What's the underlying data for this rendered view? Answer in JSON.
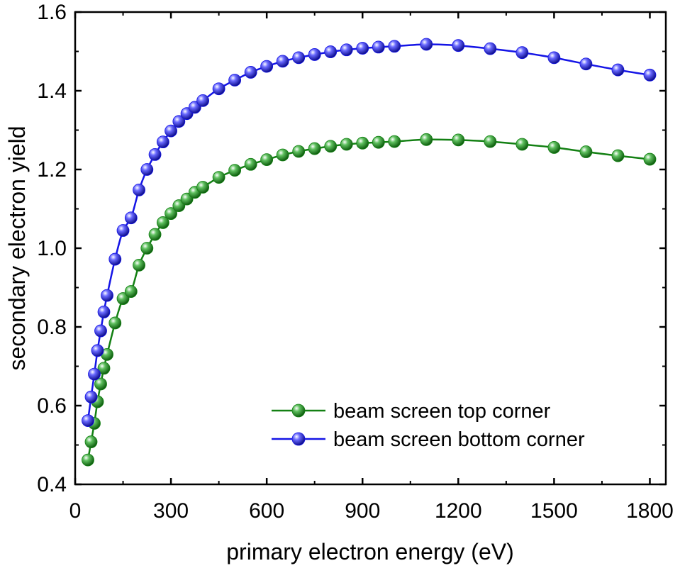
{
  "chart_data": {
    "type": "line",
    "xlabel": "primary electron energy (eV)",
    "ylabel": "secondary electron yield",
    "xlim": [
      0,
      1850
    ],
    "ylim": [
      0.4,
      1.6
    ],
    "xticks": [
      0,
      300,
      600,
      900,
      1200,
      1500,
      1800
    ],
    "yticks": [
      0.4,
      0.6,
      0.8,
      1.0,
      1.2,
      1.4,
      1.6
    ],
    "xtick_labels": [
      "0",
      "300",
      "600",
      "900",
      "1200",
      "1500",
      "1800"
    ],
    "ytick_labels": [
      "0.4",
      "0.6",
      "0.8",
      "1.0",
      "1.2",
      "1.4",
      "1.6"
    ],
    "grid": false,
    "legend_position": "bottom-right",
    "series": [
      {
        "name": "beam screen top corner",
        "color": "#138013",
        "marker": "sphere",
        "x": [
          40,
          50,
          60,
          70,
          80,
          90,
          100,
          125,
          150,
          175,
          200,
          225,
          250,
          275,
          300,
          325,
          350,
          375,
          400,
          450,
          500,
          550,
          600,
          650,
          700,
          750,
          800,
          850,
          900,
          950,
          1000,
          1100,
          1200,
          1300,
          1400,
          1500,
          1600,
          1700,
          1800
        ],
        "y": [
          0.462,
          0.508,
          0.555,
          0.61,
          0.655,
          0.695,
          0.73,
          0.81,
          0.872,
          0.89,
          0.957,
          1.0,
          1.035,
          1.065,
          1.088,
          1.108,
          1.125,
          1.142,
          1.155,
          1.18,
          1.198,
          1.213,
          1.225,
          1.237,
          1.246,
          1.253,
          1.259,
          1.264,
          1.267,
          1.269,
          1.271,
          1.276,
          1.275,
          1.271,
          1.264,
          1.256,
          1.245,
          1.235,
          1.226
        ]
      },
      {
        "name": "beam screen bottom corner",
        "color": "#1414e6",
        "marker": "sphere",
        "x": [
          40,
          50,
          60,
          70,
          80,
          90,
          100,
          125,
          150,
          175,
          200,
          225,
          250,
          275,
          300,
          325,
          350,
          375,
          400,
          450,
          500,
          550,
          600,
          650,
          700,
          750,
          800,
          850,
          900,
          950,
          1000,
          1100,
          1200,
          1300,
          1400,
          1500,
          1600,
          1700,
          1800
        ],
        "y": [
          0.562,
          0.622,
          0.68,
          0.74,
          0.79,
          0.838,
          0.88,
          0.972,
          1.045,
          1.077,
          1.148,
          1.2,
          1.238,
          1.27,
          1.298,
          1.322,
          1.342,
          1.358,
          1.375,
          1.405,
          1.427,
          1.447,
          1.462,
          1.475,
          1.484,
          1.492,
          1.499,
          1.504,
          1.508,
          1.511,
          1.513,
          1.518,
          1.515,
          1.507,
          1.497,
          1.484,
          1.468,
          1.453,
          1.44
        ]
      }
    ]
  }
}
